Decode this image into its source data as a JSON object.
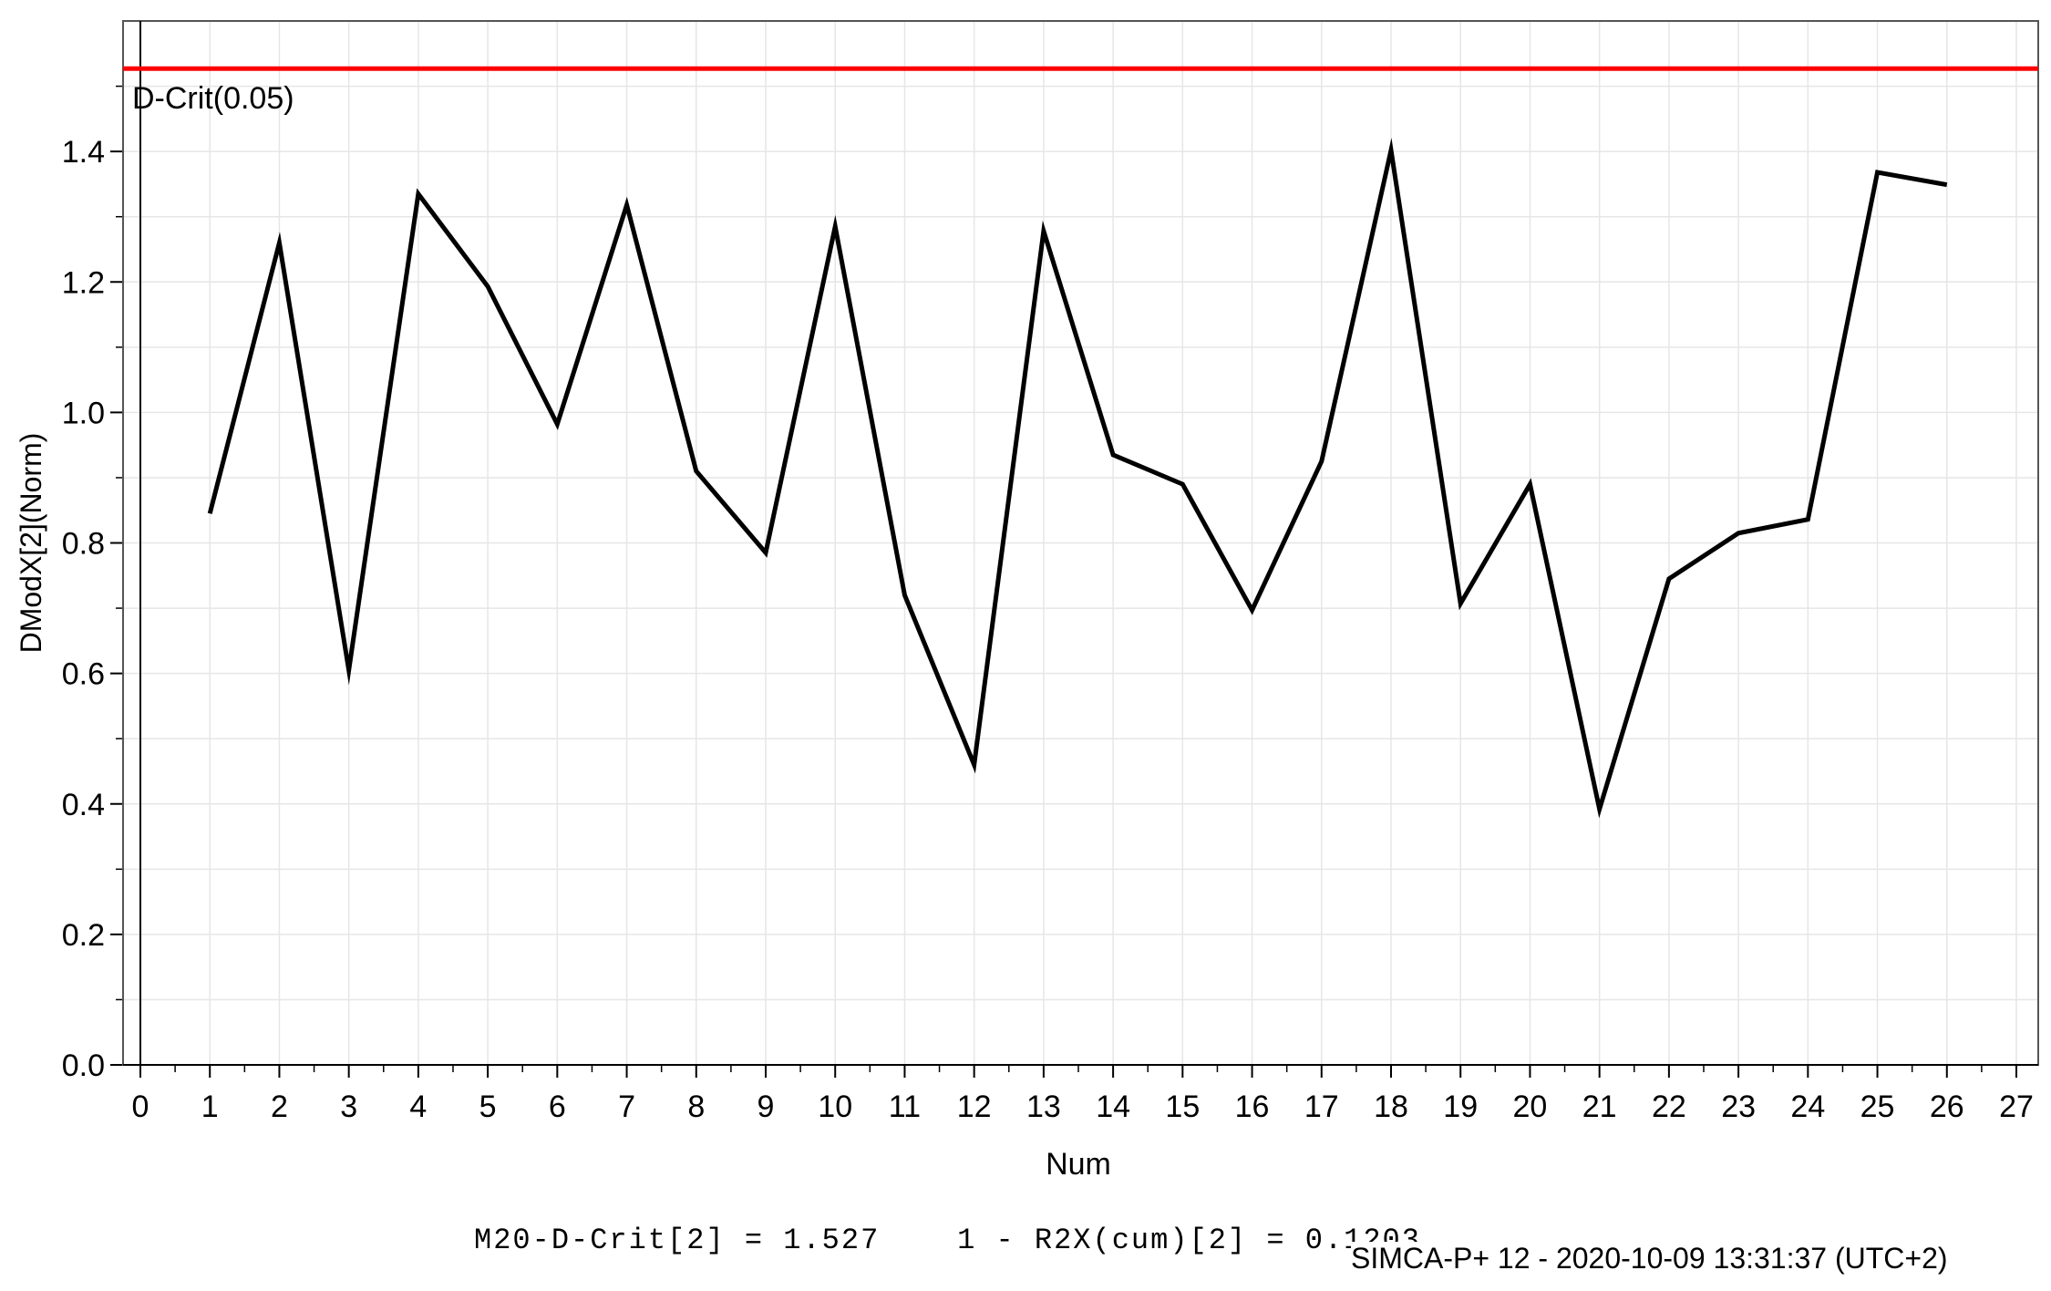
{
  "chart_data": {
    "type": "line",
    "xlabel": "Num",
    "ylabel": "DModX[2](Norm)",
    "xlim": [
      0,
      27
    ],
    "ylim": [
      0,
      1.6
    ],
    "x_ticks": [
      0,
      1,
      2,
      3,
      4,
      5,
      6,
      7,
      8,
      9,
      10,
      11,
      12,
      13,
      14,
      15,
      16,
      17,
      18,
      19,
      20,
      21,
      22,
      23,
      24,
      25,
      26,
      27
    ],
    "y_ticks": [
      "0.0",
      "0.2",
      "0.4",
      "0.6",
      "0.8",
      "1.0",
      "1.2",
      "1.4"
    ],
    "grid": true,
    "series": [
      {
        "color": "#000000",
        "x": [
          1,
          2,
          3,
          4,
          5,
          6,
          7,
          8,
          9,
          10,
          11,
          12,
          13,
          14,
          15,
          16,
          17,
          18,
          19,
          20,
          21,
          22,
          23,
          24,
          25,
          26
        ],
        "y": [
          0.845,
          1.26,
          0.605,
          1.335,
          1.193,
          0.982,
          1.318,
          0.91,
          0.785,
          1.285,
          0.72,
          0.46,
          1.278,
          0.935,
          0.89,
          0.697,
          0.925,
          1.402,
          0.707,
          0.89,
          0.392,
          0.745,
          0.815,
          0.836,
          1.368,
          1.349
        ]
      }
    ],
    "reference_line": {
      "label": "D-Crit(0.05)",
      "y": 1.527,
      "color": "#ff0000"
    }
  },
  "footer": {
    "formula": "M20-D-Crit[2] = 1.527    1 - R2X(cum)[2] = 0.1203",
    "stamp": "SIMCA-P+ 12 - 2020-10-09 13:31:37 (UTC+2)"
  }
}
